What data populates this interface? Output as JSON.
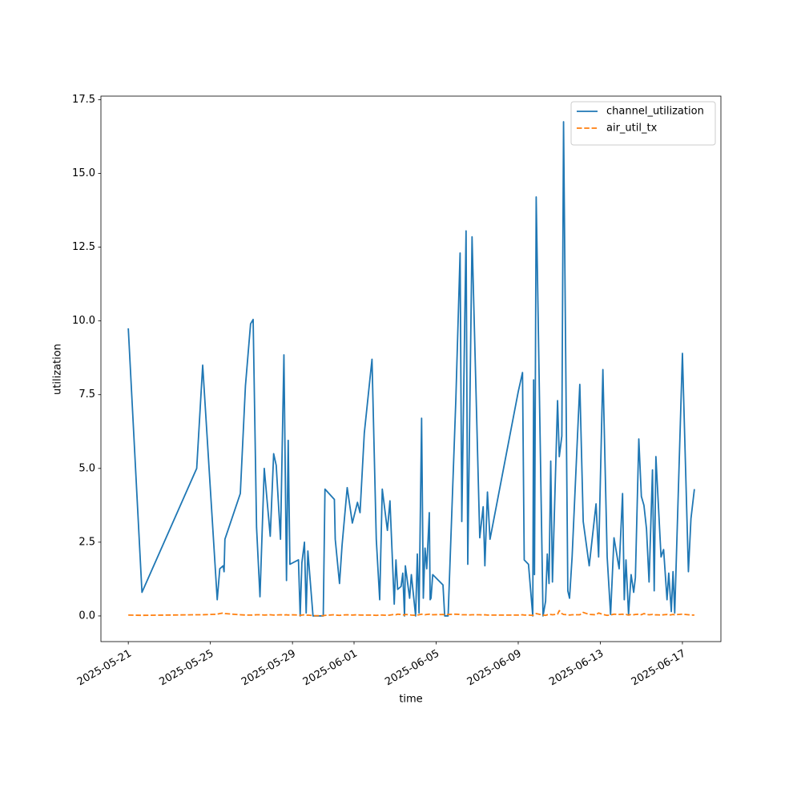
{
  "chart_data": {
    "type": "line",
    "xlabel": "time",
    "ylabel": "utilization",
    "x": [
      "2025-05-21T00:00",
      "2025-05-21T16:00",
      "2025-05-24T08:00",
      "2025-05-24T15:00",
      "2025-05-25T08:00",
      "2025-05-25T11:00",
      "2025-05-25T15:00",
      "2025-05-25T16:00",
      "2025-05-25T17:00",
      "2025-05-26T11:00",
      "2025-05-26T17:00",
      "2025-05-26T23:00",
      "2025-05-27T02:00",
      "2025-05-27T06:00",
      "2025-05-27T10:00",
      "2025-05-27T15:00",
      "2025-05-27T22:00",
      "2025-05-28T02:00",
      "2025-05-28T05:00",
      "2025-05-28T10:00",
      "2025-05-28T14:00",
      "2025-05-28T17:00",
      "2025-05-28T19:00",
      "2025-05-28T21:00",
      "2025-05-29T07:00",
      "2025-05-29T09:00",
      "2025-05-29T11:00",
      "2025-05-29T14:00",
      "2025-05-29T16:00",
      "2025-05-29T18:00",
      "2025-05-30T00:00",
      "2025-05-30T12:00",
      "2025-05-30T14:00",
      "2025-05-31T01:00",
      "2025-05-31T02:00",
      "2025-05-31T07:00",
      "2025-05-31T10:00",
      "2025-05-31T16:00",
      "2025-05-31T22:00",
      "2025-06-01T04:00",
      "2025-06-01T07:00",
      "2025-06-01T12:00",
      "2025-06-01T21:00",
      "2025-06-02T02:00",
      "2025-06-02T06:00",
      "2025-06-02T09:00",
      "2025-06-02T15:00",
      "2025-06-02T18:00",
      "2025-06-02T23:00",
      "2025-06-03T01:00",
      "2025-06-03T03:00",
      "2025-06-03T07:00",
      "2025-06-03T09:00",
      "2025-06-03T11:00",
      "2025-06-03T12:00",
      "2025-06-03T17:00",
      "2025-06-03T19:00",
      "2025-06-04T00:00",
      "2025-06-04T02:00",
      "2025-06-04T04:00",
      "2025-06-04T07:00",
      "2025-06-04T09:00",
      "2025-06-04T11:00",
      "2025-06-04T13:00",
      "2025-06-04T16:00",
      "2025-06-04T17:00",
      "2025-06-04T18:00",
      "2025-06-04T20:00",
      "2025-06-05T08:00",
      "2025-06-05T10:00",
      "2025-06-05T14:00",
      "2025-06-05T23:00",
      "2025-06-06T04:00",
      "2025-06-06T06:00",
      "2025-06-06T11:00",
      "2025-06-06T13:00",
      "2025-06-06T18:00",
      "2025-06-07T03:00",
      "2025-06-07T07:00",
      "2025-06-07T09:00",
      "2025-06-07T12:00",
      "2025-06-07T15:00",
      "2025-06-09T00:00",
      "2025-06-09T05:00",
      "2025-06-09T07:00",
      "2025-06-09T12:00",
      "2025-06-09T17:00",
      "2025-06-09T18:00",
      "2025-06-09T19:00",
      "2025-06-09T21:00",
      "2025-06-10T05:00",
      "2025-06-10T08:00",
      "2025-06-10T10:00",
      "2025-06-10T12:00",
      "2025-06-10T14:00",
      "2025-06-10T16:00",
      "2025-06-10T22:00",
      "2025-06-11T00:00",
      "2025-06-11T03:00",
      "2025-06-11T05:00",
      "2025-06-11T10:00",
      "2025-06-11T12:00",
      "2025-06-11T15:00",
      "2025-06-12T00:00",
      "2025-06-12T04:00",
      "2025-06-12T11:00",
      "2025-06-12T19:00",
      "2025-06-12T22:00",
      "2025-06-13T03:00",
      "2025-06-13T08:00",
      "2025-06-13T12:00",
      "2025-06-13T16:00",
      "2025-06-13T22:00",
      "2025-06-14T02:00",
      "2025-06-14T04:00",
      "2025-06-14T06:00",
      "2025-06-14T09:00",
      "2025-06-14T12:00",
      "2025-06-14T15:00",
      "2025-06-14T17:00",
      "2025-06-14T21:00",
      "2025-06-15T00:00",
      "2025-06-15T03:00",
      "2025-06-15T06:00",
      "2025-06-15T09:00",
      "2025-06-15T13:00",
      "2025-06-15T15:00",
      "2025-06-15T17:00",
      "2025-06-15T23:00",
      "2025-06-16T02:00",
      "2025-06-16T06:00",
      "2025-06-16T08:00",
      "2025-06-16T11:00",
      "2025-06-16T13:00",
      "2025-06-16T15:00",
      "2025-06-17T00:00",
      "2025-06-17T07:00",
      "2025-06-17T10:00",
      "2025-06-17T14:00"
    ],
    "series": [
      {
        "name": "channel_utilization",
        "color": "#1f77b4",
        "dash": "solid",
        "values": [
          9.75,
          0.8,
          5.0,
          8.5,
          0.55,
          1.6,
          1.7,
          1.5,
          2.6,
          4.15,
          7.8,
          9.9,
          10.05,
          3.0,
          0.65,
          5.0,
          2.7,
          5.5,
          5.1,
          2.6,
          8.85,
          1.2,
          5.95,
          1.75,
          1.9,
          0.0,
          1.8,
          2.5,
          0.1,
          2.2,
          0.0,
          0.0,
          4.3,
          3.95,
          2.6,
          1.1,
          2.4,
          4.35,
          3.15,
          3.85,
          3.5,
          6.2,
          8.7,
          2.6,
          0.55,
          4.3,
          2.9,
          3.9,
          0.4,
          1.9,
          0.9,
          1.0,
          1.45,
          0.0,
          1.7,
          0.6,
          1.4,
          0.0,
          2.1,
          0.1,
          6.7,
          0.6,
          2.3,
          1.6,
          3.5,
          0.55,
          0.6,
          1.4,
          1.05,
          0.0,
          0.0,
          7.3,
          12.3,
          3.2,
          13.05,
          1.75,
          12.85,
          2.65,
          3.7,
          1.7,
          4.2,
          2.6,
          7.6,
          8.25,
          1.9,
          1.75,
          0.0,
          8.0,
          1.4,
          14.2,
          0.0,
          0.5,
          2.1,
          1.1,
          5.25,
          1.15,
          7.3,
          5.4,
          6.1,
          16.75,
          0.85,
          0.6,
          2.0,
          7.85,
          3.2,
          1.7,
          3.8,
          2.0,
          8.35,
          2.0,
          0.05,
          2.65,
          1.6,
          4.15,
          0.55,
          1.9,
          0.05,
          1.4,
          0.8,
          1.3,
          6.0,
          4.05,
          3.75,
          2.95,
          1.15,
          4.95,
          0.85,
          5.4,
          2.0,
          2.25,
          0.55,
          1.45,
          0.15,
          1.5,
          0.1,
          8.9,
          1.5,
          3.3,
          4.3
        ]
      },
      {
        "name": "air_util_tx",
        "color": "#ff7f0e",
        "dash": "dashed",
        "values": [
          0.03,
          0.02,
          0.04,
          0.04,
          0.06,
          0.08,
          0.1,
          0.09,
          0.08,
          0.04,
          0.03,
          0.03,
          0.03,
          0.04,
          0.04,
          0.03,
          0.04,
          0.03,
          0.03,
          0.04,
          0.03,
          0.04,
          0.03,
          0.04,
          0.03,
          0.02,
          0.03,
          0.04,
          0.02,
          0.03,
          0.01,
          0.01,
          0.02,
          0.04,
          0.03,
          0.02,
          0.03,
          0.04,
          0.03,
          0.04,
          0.03,
          0.03,
          0.03,
          0.02,
          0.03,
          0.03,
          0.02,
          0.03,
          0.05,
          0.04,
          0.06,
          0.05,
          0.04,
          0.03,
          0.05,
          0.04,
          0.03,
          0.02,
          0.03,
          0.04,
          0.06,
          0.05,
          0.04,
          0.05,
          0.06,
          0.04,
          0.05,
          0.04,
          0.05,
          0.04,
          0.05,
          0.06,
          0.05,
          0.04,
          0.04,
          0.03,
          0.04,
          0.04,
          0.03,
          0.04,
          0.03,
          0.03,
          0.03,
          0.04,
          0.03,
          0.03,
          0.02,
          0.03,
          0.04,
          0.08,
          0.03,
          0.02,
          0.04,
          0.03,
          0.05,
          0.04,
          0.06,
          0.18,
          0.08,
          0.05,
          0.04,
          0.03,
          0.04,
          0.04,
          0.12,
          0.05,
          0.04,
          0.1,
          0.05,
          0.02,
          0.03,
          0.06,
          0.05,
          0.06,
          0.04,
          0.05,
          0.03,
          0.05,
          0.04,
          0.05,
          0.06,
          0.04,
          0.08,
          0.05,
          0.04,
          0.05,
          0.03,
          0.04,
          0.03,
          0.04,
          0.05,
          0.03,
          0.04,
          0.05,
          0.04,
          0.06,
          0.04,
          0.03,
          0.03
        ]
      }
    ],
    "xlim": [
      "2025-05-19T16:00",
      "2025-06-18T21:00"
    ],
    "xticks": [
      "2025-05-21",
      "2025-05-25",
      "2025-05-29",
      "2025-06-01",
      "2025-06-05",
      "2025-06-09",
      "2025-06-13",
      "2025-06-17"
    ],
    "ylim": [
      -0.87,
      17.62
    ],
    "yticks": [
      {
        "value": 0,
        "label": "0.0"
      },
      2.5,
      {
        "value": 5,
        "label": "5.0"
      },
      7.5,
      {
        "value": 10,
        "label": "10.0"
      },
      12.5,
      {
        "value": 15,
        "label": "15.0"
      },
      17.5
    ],
    "grid": false,
    "legend": "upper right"
  }
}
